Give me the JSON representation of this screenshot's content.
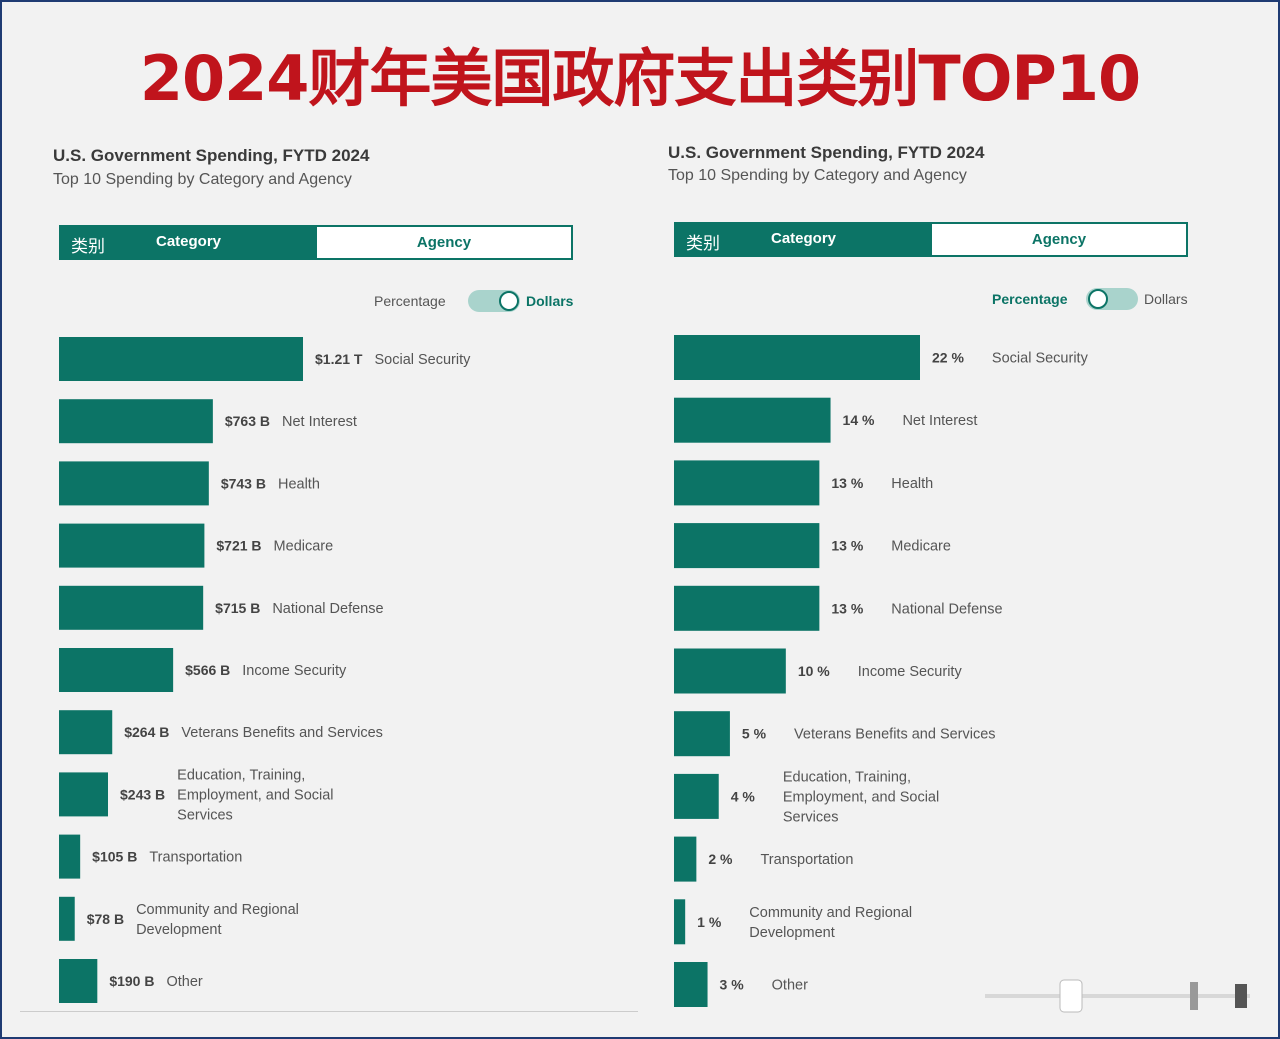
{
  "title": "2024财年美国政府支出类别TOP10",
  "panels": [
    {
      "title": "U.S. Government Spending, FYTD 2024",
      "subtitle": "Top 10 Spending by Category and Agency",
      "tabs": {
        "cn_label": "类别",
        "active": "Category",
        "inactive": "Agency"
      },
      "toggle": {
        "left": "Percentage",
        "right": "Dollars",
        "selected": "Dollars"
      }
    },
    {
      "title": "U.S. Government Spending, FYTD 2024",
      "subtitle": "Top 10 Spending by Category and Agency",
      "tabs": {
        "cn_label": "类别",
        "active": "Category",
        "inactive": "Agency"
      },
      "toggle": {
        "left": "Percentage",
        "right": "Dollars",
        "selected": "Percentage"
      }
    }
  ],
  "colors": {
    "bar": "#0c7466",
    "title": "#c0141c",
    "frame": "#1f3b73"
  },
  "chart_data": [
    {
      "type": "bar",
      "orientation": "horizontal",
      "unit": "billion USD",
      "categories": [
        "Social Security",
        "Net Interest",
        "Health",
        "Medicare",
        "National Defense",
        "Income Security",
        "Veterans Benefits and Services",
        "Education, Training, Employment, and Social Services",
        "Transportation",
        "Community and Regional Development",
        "Other"
      ],
      "category_lines": [
        [
          "Social Security"
        ],
        [
          "Net Interest"
        ],
        [
          "Health"
        ],
        [
          "Medicare"
        ],
        [
          "National Defense"
        ],
        [
          "Income Security"
        ],
        [
          "Veterans Benefits and Services"
        ],
        [
          "Education, Training,",
          "Employment, and Social",
          "Services"
        ],
        [
          "Transportation"
        ],
        [
          "Community and Regional",
          "Development"
        ],
        [
          "Other"
        ]
      ],
      "values": [
        1210,
        763,
        743,
        721,
        715,
        566,
        264,
        243,
        105,
        78,
        190
      ],
      "labels": [
        "$1.21 T",
        "$763 B",
        "$743 B",
        "$721 B",
        "$715 B",
        "$566 B",
        "$264 B",
        "$243 B",
        "$105 B",
        "$78 B",
        "$190 B"
      ]
    },
    {
      "type": "bar",
      "orientation": "horizontal",
      "unit": "percent",
      "categories": [
        "Social Security",
        "Net Interest",
        "Health",
        "Medicare",
        "National Defense",
        "Income Security",
        "Veterans Benefits and Services",
        "Education, Training, Employment, and Social Services",
        "Transportation",
        "Community and Regional Development",
        "Other"
      ],
      "category_lines": [
        [
          "Social Security"
        ],
        [
          "Net Interest"
        ],
        [
          "Health"
        ],
        [
          "Medicare"
        ],
        [
          "National Defense"
        ],
        [
          "Income Security"
        ],
        [
          "Veterans Benefits and Services"
        ],
        [
          "Education, Training,",
          "Employment, and Social",
          "Services"
        ],
        [
          "Transportation"
        ],
        [
          "Community and Regional",
          "Development"
        ],
        [
          "Other"
        ]
      ],
      "values": [
        22,
        14,
        13,
        13,
        13,
        10,
        5,
        4,
        2,
        1,
        3
      ],
      "labels": [
        "22 %",
        "14 %",
        "13 %",
        "13 %",
        "13 %",
        "10 %",
        "5 %",
        "4 %",
        "2 %",
        "1 %",
        "3 %"
      ]
    }
  ]
}
